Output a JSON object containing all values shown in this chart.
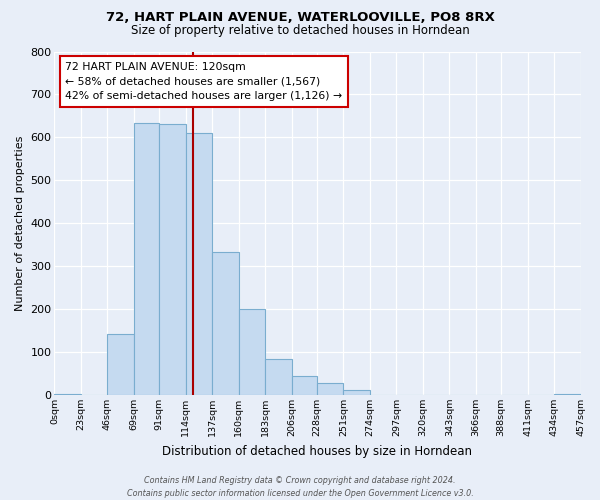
{
  "title": "72, HART PLAIN AVENUE, WATERLOOVILLE, PO8 8RX",
  "subtitle": "Size of property relative to detached houses in Horndean",
  "xlabel": "Distribution of detached houses by size in Horndean",
  "ylabel": "Number of detached properties",
  "bar_color": "#c5daf0",
  "bar_edge_color": "#7aadcf",
  "bins": [
    0,
    23,
    46,
    69,
    91,
    114,
    137,
    160,
    183,
    206,
    228,
    251,
    274,
    297,
    320,
    343,
    366,
    388,
    411,
    434,
    457
  ],
  "counts": [
    2,
    0,
    143,
    634,
    632,
    610,
    332,
    200,
    83,
    45,
    27,
    12,
    0,
    0,
    0,
    0,
    0,
    0,
    0,
    2
  ],
  "tick_labels": [
    "0sqm",
    "23sqm",
    "46sqm",
    "69sqm",
    "91sqm",
    "114sqm",
    "137sqm",
    "160sqm",
    "183sqm",
    "206sqm",
    "228sqm",
    "251sqm",
    "274sqm",
    "297sqm",
    "320sqm",
    "343sqm",
    "366sqm",
    "388sqm",
    "411sqm",
    "434sqm",
    "457sqm"
  ],
  "property_size": 120,
  "property_line_color": "#aa0000",
  "annotation_line1": "72 HART PLAIN AVENUE: 120sqm",
  "annotation_line2": "← 58% of detached houses are smaller (1,567)",
  "annotation_line3": "42% of semi-detached houses are larger (1,126) →",
  "annotation_box_color": "#ffffff",
  "annotation_box_edge": "#cc0000",
  "ylim": [
    0,
    800
  ],
  "yticks": [
    0,
    100,
    200,
    300,
    400,
    500,
    600,
    700,
    800
  ],
  "footer_line1": "Contains HM Land Registry data © Crown copyright and database right 2024.",
  "footer_line2": "Contains public sector information licensed under the Open Government Licence v3.0.",
  "background_color": "#e8eef8",
  "grid_color": "#ffffff",
  "title_fontsize": 9.5,
  "subtitle_fontsize": 8.5
}
